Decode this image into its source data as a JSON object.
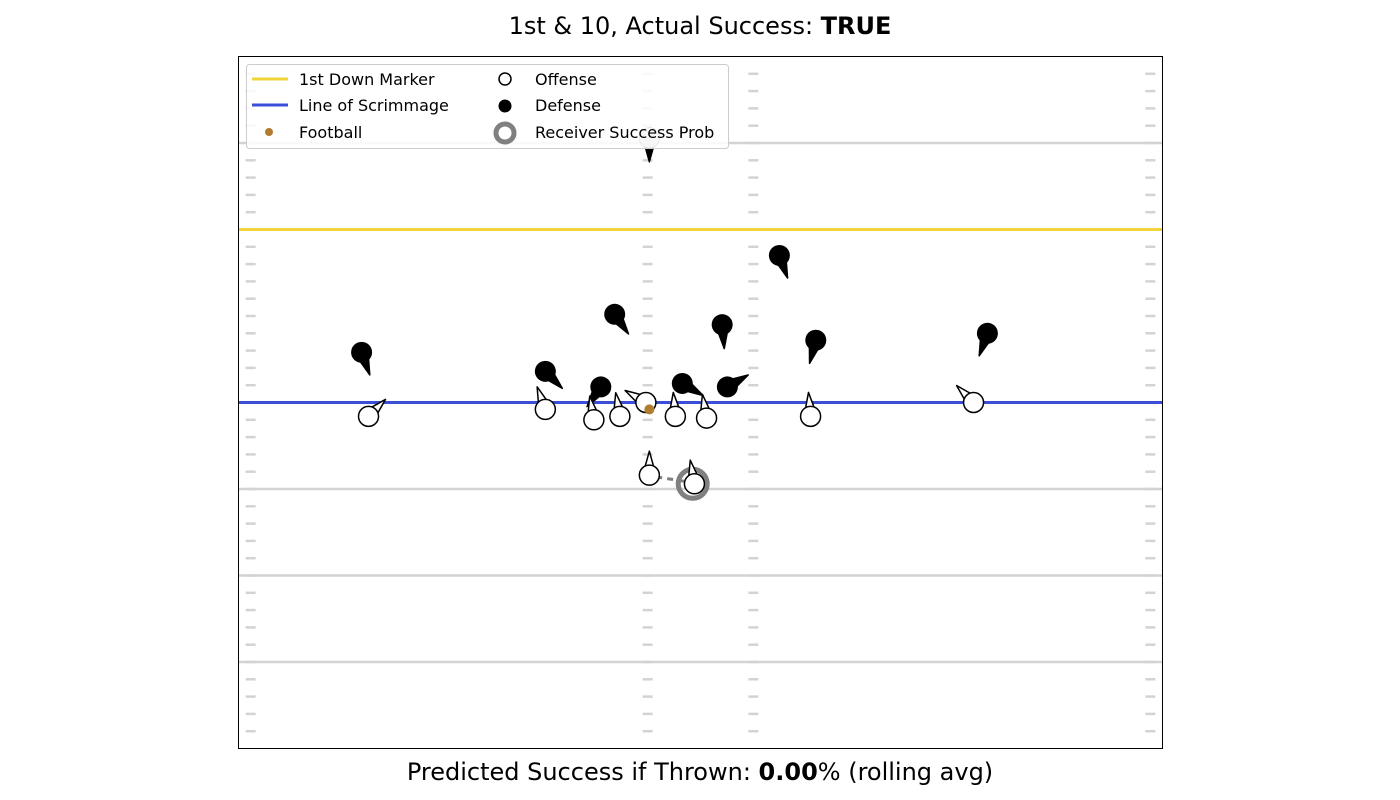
{
  "title": {
    "prefix": "1st & 10, Actual Success: ",
    "value": "TRUE"
  },
  "footer": {
    "prefix": "Predicted Success if Thrown: ",
    "value": "0.00",
    "suffix": "% (rolling avg)"
  },
  "colors": {
    "first_down": "#f0d43a",
    "line_of_scrimmage": "#3b4ed8",
    "football": "#b07d30",
    "field_line": "#d3d3d3",
    "hash": "#d3d3d3",
    "prob_ring": "#808080"
  },
  "chart_data": {
    "type": "scatter",
    "title": "1st & 10, Actual Success: TRUE",
    "xlim": [
      0,
      53.3
    ],
    "ylim": [
      0,
      40
    ],
    "grid": false,
    "legend_placement": "top-left",
    "legend": [
      {
        "label": "1st Down Marker",
        "kind": "line",
        "color": "#f0d43a"
      },
      {
        "label": "Line of Scrimmage",
        "kind": "line",
        "color": "#3b4ed8"
      },
      {
        "label": "Football",
        "kind": "dot",
        "color": "#b07d30"
      },
      {
        "label": "Offense",
        "kind": "hollow"
      },
      {
        "label": "Defense",
        "kind": "filled"
      },
      {
        "label": "Receiver Success Prob",
        "kind": "ring"
      }
    ],
    "yard_lines": [
      5,
      10,
      15,
      20,
      30,
      35
    ],
    "first_down_y": 30,
    "line_of_scrimmage_y": 20,
    "hash_columns_x": [
      0.7,
      23.6,
      29.7,
      52.6
    ],
    "football": {
      "x": 23.7,
      "y": 19.6
    },
    "receiver_prob": {
      "x": 26.2,
      "y": 15.3
    },
    "route_stub": {
      "x1": 24.1,
      "y1": 15.7,
      "x2": 26.0,
      "y2": 15.4
    },
    "offense": [
      {
        "x": 7.5,
        "y": 19.2,
        "dir": 45
      },
      {
        "x": 17.7,
        "y": 19.6,
        "dir": -20
      },
      {
        "x": 20.5,
        "y": 19.0,
        "dir": -10
      },
      {
        "x": 22.0,
        "y": 19.2,
        "dir": -10
      },
      {
        "x": 23.5,
        "y": 20.0,
        "dir": -60
      },
      {
        "x": 25.2,
        "y": 19.2,
        "dir": -5
      },
      {
        "x": 27.0,
        "y": 19.1,
        "dir": -10
      },
      {
        "x": 33.0,
        "y": 19.2,
        "dir": -5
      },
      {
        "x": 42.4,
        "y": 20.0,
        "dir": -45
      },
      {
        "x": 23.7,
        "y": 15.8,
        "dir": 0
      },
      {
        "x": 26.3,
        "y": 15.3,
        "dir": -10
      }
    ],
    "defense": [
      {
        "x": 7.1,
        "y": 22.9,
        "dir": 160
      },
      {
        "x": 17.7,
        "y": 21.8,
        "dir": 135
      },
      {
        "x": 20.9,
        "y": 20.9,
        "dir": 215
      },
      {
        "x": 21.7,
        "y": 25.1,
        "dir": 145
      },
      {
        "x": 25.6,
        "y": 21.1,
        "dir": 120
      },
      {
        "x": 27.9,
        "y": 24.5,
        "dir": 175
      },
      {
        "x": 28.2,
        "y": 20.9,
        "dir": 60
      },
      {
        "x": 31.2,
        "y": 28.5,
        "dir": 160
      },
      {
        "x": 33.3,
        "y": 23.6,
        "dir": 195
      },
      {
        "x": 43.2,
        "y": 24.0,
        "dir": 200
      },
      {
        "x": 23.7,
        "y": 35.3,
        "dir": 180
      }
    ]
  }
}
